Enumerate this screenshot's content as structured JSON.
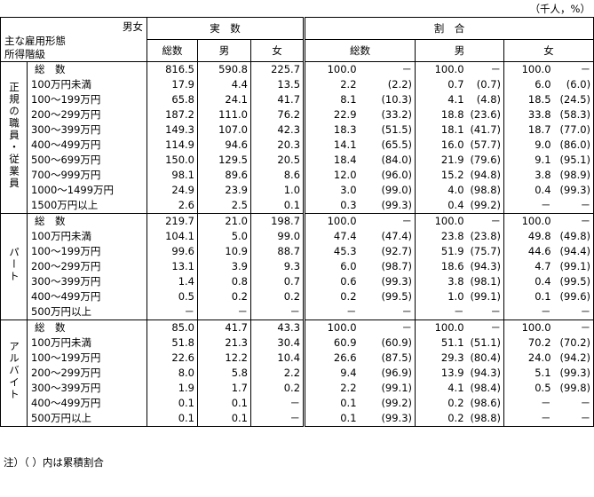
{
  "unit": "（千人，%）",
  "header": {
    "corner_top": "男女",
    "corner_left": [
      "主な雇用形態",
      "所得階級"
    ],
    "actual": "実　数",
    "ratio": "割　合",
    "columns": [
      "総数",
      "男",
      "女",
      "総数",
      "男",
      "女"
    ]
  },
  "groups": [
    {
      "label": "正規の職員・従業員",
      "rows": [
        [
          "総　数",
          "816.5",
          "590.8",
          "225.7",
          "100.0",
          "－",
          "100.0",
          "－",
          "100.0",
          "－"
        ],
        [
          "100万円未満",
          "17.9",
          "4.4",
          "13.5",
          "2.2",
          "(2.2)",
          "0.7",
          "(0.7)",
          "6.0",
          "(6.0)"
        ],
        [
          "100～199万円",
          "65.8",
          "24.1",
          "41.7",
          "8.1",
          "(10.3)",
          "4.1",
          "(4.8)",
          "18.5",
          "(24.5)"
        ],
        [
          "200～299万円",
          "187.2",
          "111.0",
          "76.2",
          "22.9",
          "(33.2)",
          "18.8",
          "(23.6)",
          "33.8",
          "(58.3)"
        ],
        [
          "300～399万円",
          "149.3",
          "107.0",
          "42.3",
          "18.3",
          "(51.5)",
          "18.1",
          "(41.7)",
          "18.7",
          "(77.0)"
        ],
        [
          "400～499万円",
          "114.9",
          "94.6",
          "20.3",
          "14.1",
          "(65.5)",
          "16.0",
          "(57.7)",
          "9.0",
          "(86.0)"
        ],
        [
          "500～699万円",
          "150.0",
          "129.5",
          "20.5",
          "18.4",
          "(84.0)",
          "21.9",
          "(79.6)",
          "9.1",
          "(95.1)"
        ],
        [
          "700～999万円",
          "98.1",
          "89.6",
          "8.6",
          "12.0",
          "(96.0)",
          "15.2",
          "(94.8)",
          "3.8",
          "(98.9)"
        ],
        [
          "1000～1499万円",
          "24.9",
          "23.9",
          "1.0",
          "3.0",
          "(99.0)",
          "4.0",
          "(98.8)",
          "0.4",
          "(99.3)"
        ],
        [
          "1500万円以上",
          "2.6",
          "2.5",
          "0.1",
          "0.3",
          "(99.3)",
          "0.4",
          "(99.2)",
          "－",
          "－"
        ]
      ]
    },
    {
      "label": "パート",
      "rows": [
        [
          "総　数",
          "219.7",
          "21.0",
          "198.7",
          "100.0",
          "－",
          "100.0",
          "－",
          "100.0",
          "－"
        ],
        [
          "100万円未満",
          "104.1",
          "5.0",
          "99.0",
          "47.4",
          "(47.4)",
          "23.8",
          "(23.8)",
          "49.8",
          "(49.8)"
        ],
        [
          "100～199万円",
          "99.6",
          "10.9",
          "88.7",
          "45.3",
          "(92.7)",
          "51.9",
          "(75.7)",
          "44.6",
          "(94.4)"
        ],
        [
          "200～299万円",
          "13.1",
          "3.9",
          "9.3",
          "6.0",
          "(98.7)",
          "18.6",
          "(94.3)",
          "4.7",
          "(99.1)"
        ],
        [
          "300～399万円",
          "1.4",
          "0.8",
          "0.7",
          "0.6",
          "(99.3)",
          "3.8",
          "(98.1)",
          "0.4",
          "(99.5)"
        ],
        [
          "400～499万円",
          "0.5",
          "0.2",
          "0.2",
          "0.2",
          "(99.5)",
          "1.0",
          "(99.1)",
          "0.1",
          "(99.6)"
        ],
        [
          "500万円以上",
          "－",
          "－",
          "－",
          "－",
          "－",
          "－",
          "－",
          "－",
          "－"
        ]
      ]
    },
    {
      "label": "アルバイト",
      "rows": [
        [
          "総　数",
          "85.0",
          "41.7",
          "43.3",
          "100.0",
          "－",
          "100.0",
          "－",
          "100.0",
          "－"
        ],
        [
          "100万円未満",
          "51.8",
          "21.3",
          "30.4",
          "60.9",
          "(60.9)",
          "51.1",
          "(51.1)",
          "70.2",
          "(70.2)"
        ],
        [
          "100～199万円",
          "22.6",
          "12.2",
          "10.4",
          "26.6",
          "(87.5)",
          "29.3",
          "(80.4)",
          "24.0",
          "(94.2)"
        ],
        [
          "200～299万円",
          "8.0",
          "5.8",
          "2.2",
          "9.4",
          "(96.9)",
          "13.9",
          "(94.3)",
          "5.1",
          "(99.3)"
        ],
        [
          "300～399万円",
          "1.9",
          "1.7",
          "0.2",
          "2.2",
          "(99.1)",
          "4.1",
          "(98.4)",
          "0.5",
          "(99.8)"
        ],
        [
          "400～499万円",
          "0.1",
          "0.1",
          "－",
          "0.1",
          "(99.2)",
          "0.2",
          "(98.6)",
          "－",
          "－"
        ],
        [
          "500万円以上",
          "0.1",
          "0.1",
          "－",
          "0.1",
          "(99.3)",
          "0.2",
          "(98.8)",
          "－",
          "－"
        ]
      ]
    }
  ],
  "note": "注）（ ）内は累積割合"
}
